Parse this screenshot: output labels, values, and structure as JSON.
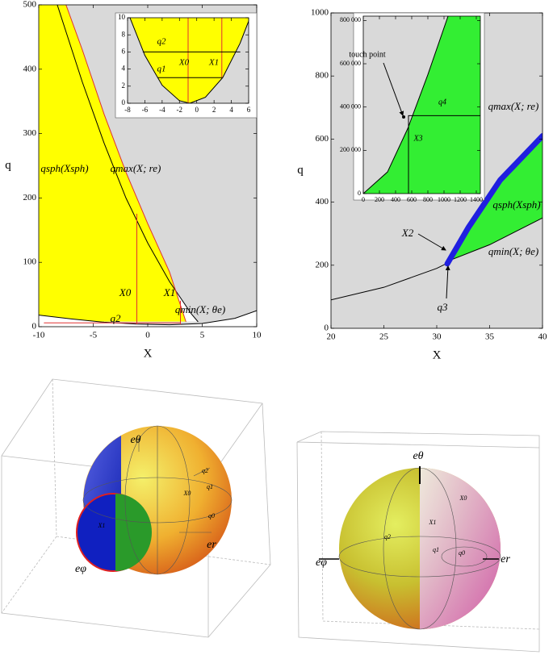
{
  "chart_data": [
    {
      "type": "line",
      "xlabel": "X",
      "ylabel": "q",
      "xlim": [
        -10,
        10
      ],
      "ylim": [
        0,
        500
      ],
      "xticks": [
        -10,
        -5,
        0,
        5,
        10
      ],
      "yticks": [
        0,
        100,
        200,
        300,
        400,
        500
      ],
      "background": "#d9d9d9",
      "series": [
        {
          "color": "#000000",
          "fill": "#ffffff",
          "fill_to": "left",
          "x": [
            -8.3,
            -6,
            -4,
            -2,
            0,
            2,
            4,
            4.6
          ],
          "values": [
            500,
            380,
            285,
            200,
            130,
            70,
            20,
            8
          ]
        },
        {
          "color": "#e03030",
          "fill": "#ffff00",
          "fill_to": "left",
          "x": [
            -7.5,
            -6,
            -4,
            -2,
            0,
            2,
            3.5
          ],
          "values": [
            500,
            430,
            330,
            240,
            160,
            85,
            8
          ]
        },
        {
          "color": "#000000",
          "fill": "#ffffff",
          "fill_to": "bottom",
          "x": [
            -10,
            -7,
            -4,
            -1,
            2,
            5,
            8,
            10
          ],
          "values": [
            18,
            12,
            7,
            4,
            3,
            5,
            13,
            25
          ]
        },
        {
          "color": "#e03030",
          "x": [
            -1,
            -1
          ],
          "values": [
            4,
            175
          ]
        },
        {
          "color": "#e03030",
          "x": [
            3,
            3
          ],
          "values": [
            4,
            40
          ]
        },
        {
          "color": "#e03030",
          "x": [
            -9.5,
            3
          ],
          "values": [
            6,
            6
          ]
        }
      ],
      "annotations": [
        "qsph(Xsph)",
        "qmax(X; re)",
        "qmin(X; θe)",
        "X0",
        "X1",
        "q2"
      ],
      "inset": {
        "xlim": [
          -8,
          6
        ],
        "ylim": [
          0,
          10
        ],
        "xticks": [
          -8,
          -6,
          -4,
          -2,
          0,
          2,
          4,
          6
        ],
        "yticks": [
          0,
          2,
          4,
          6,
          8,
          10
        ],
        "background": "#d9d9d9",
        "series": [
          {
            "color": "#000000",
            "fill": "#ffff00",
            "fill_to": "top",
            "x": [
              -7.8,
              -6,
              -4,
              -2,
              -0.8,
              1,
              3,
              5,
              6
            ],
            "values": [
              10.2,
              5.6,
              2.1,
              0.3,
              0,
              0.7,
              3.0,
              7.0,
              9.6
            ]
          },
          {
            "color": "#e03030",
            "x": [
              -1,
              -1
            ],
            "values": [
              0,
              10
            ]
          },
          {
            "color": "#e03030",
            "x": [
              2.9,
              2.9
            ],
            "values": [
              3,
              10
            ]
          },
          {
            "color": "#000000",
            "x": [
              -6.2,
              5
            ],
            "values": [
              6,
              6
            ]
          },
          {
            "color": "#000000",
            "x": [
              -4.5,
              2.9
            ],
            "values": [
              3,
              3
            ]
          }
        ],
        "annotations": [
          "q2",
          "q1",
          "X0",
          "X1"
        ]
      }
    },
    {
      "type": "line",
      "xlabel": "X",
      "ylabel": "q",
      "xlim": [
        20,
        40
      ],
      "ylim": [
        0,
        1000
      ],
      "xticks": [
        20,
        25,
        30,
        35,
        40
      ],
      "yticks": [
        0,
        200,
        400,
        600,
        800,
        1000
      ],
      "background": "#d9d9d9",
      "series": [
        {
          "color": "#000000",
          "x": [
            20,
            25,
            30,
            31.2
          ],
          "values": [
            90,
            130,
            190,
            210
          ]
        },
        {
          "color": "#000000",
          "x": [
            31.2,
            35,
            40
          ],
          "values": [
            215,
            265,
            350
          ]
        },
        {
          "color": "#1f1fe0",
          "width": 7,
          "fill": "#33ee33",
          "fill_between": 1,
          "x": [
            31,
            33,
            36,
            40
          ],
          "values": [
            205,
            320,
            470,
            610
          ]
        }
      ],
      "annotations": [
        "qmax(X; re)",
        "qsph(Xsph)",
        "qmin(X; θe)",
        "X2",
        "q3"
      ],
      "inset": {
        "xlim": [
          0,
          1450
        ],
        "ylim": [
          0,
          820000
        ],
        "xticks": [
          0,
          200,
          400,
          600,
          800,
          1000,
          1200,
          1400
        ],
        "yticks": [
          0,
          {
            "value": 200000,
            "label": "200 000"
          },
          {
            "value": 400000,
            "label": "400 000"
          },
          {
            "value": 600000,
            "label": "600 000"
          },
          {
            "value": 800000,
            "label": "800 000"
          }
        ],
        "background": "#d9d9d9",
        "series": [
          {
            "color": "#000000",
            "fill": "#33ee33",
            "fill_to": "right",
            "x": [
              0,
              300,
              550,
              800,
              1050
            ],
            "values": [
              0,
              100000,
              300000,
              550000,
              820000
            ]
          },
          {
            "color": "#000000",
            "x": [
              560,
              560
            ],
            "values": [
              0,
              360000
            ]
          },
          {
            "color": "#000000",
            "x": [
              560,
              1450
            ],
            "values": [
              360000,
              360000
            ]
          }
        ],
        "annotations": [
          "touch point",
          "q4",
          "X3"
        ]
      }
    }
  ],
  "spheres": [
    {
      "labels": [
        "eθ",
        "q2",
        "X0",
        "q1",
        "q0",
        "X1",
        "eφ",
        "er"
      ]
    },
    {
      "labels": [
        "eθ",
        "X0",
        "X1",
        "q2",
        "q1",
        "q0",
        "eφ",
        "er"
      ]
    }
  ]
}
